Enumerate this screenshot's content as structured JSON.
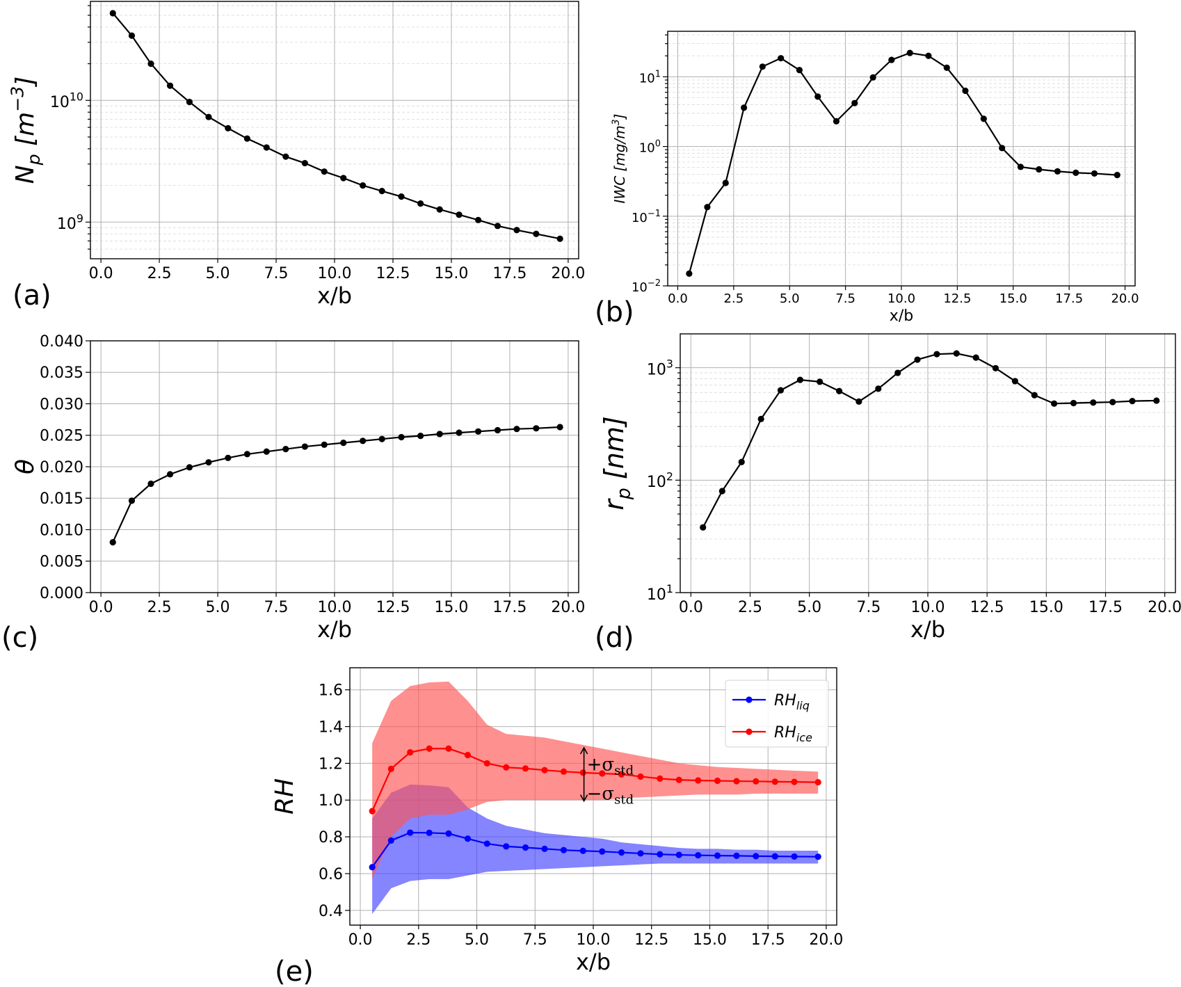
{
  "x_values": [
    0.51,
    1.32,
    2.14,
    2.96,
    3.79,
    4.61,
    5.44,
    6.26,
    7.09,
    7.91,
    8.73,
    9.56,
    10.38,
    11.21,
    12.03,
    12.86,
    13.68,
    14.5,
    15.33,
    16.15,
    16.98,
    17.8,
    18.63,
    19.65
  ],
  "chart_data": [
    {
      "panel": "(a)",
      "type": "line",
      "xlabel": "x/b",
      "ylabel": "N_p [m^-3]",
      "ylabel_base": "N",
      "ylabel_sub": "p",
      "ylabel_unit": " [m",
      "ylabel_sup": "−3",
      "ylabel_end": "]",
      "yscale": "log",
      "xlim": [
        -0.45,
        20.45
      ],
      "ylim": [
        500000000,
        65000000000
      ],
      "xticks": [
        "0.0",
        "2.5",
        "5.0",
        "7.5",
        "10.0",
        "12.5",
        "15.0",
        "17.5",
        "20.0"
      ],
      "ytick_labels": [
        {
          "value": 1000000000,
          "base": "10",
          "exp": "9"
        },
        {
          "value": 10000000000,
          "base": "10",
          "exp": "10"
        }
      ],
      "y": [
        52000000000,
        34000000000,
        20000000000,
        13200000000,
        9700000000,
        7300000000,
        5900000000,
        4850000000,
        4100000000,
        3450000000,
        3050000000,
        2600000000,
        2300000000,
        2000000000,
        1800000000,
        1620000000,
        1420000000,
        1270000000,
        1150000000,
        1040000000,
        930000000,
        860000000,
        800000000,
        730000000
      ],
      "color": "#000000",
      "grid": true
    },
    {
      "panel": "(b)",
      "type": "line",
      "xlabel": "x/b",
      "ylabel": "IWC [mg/m^3]",
      "ylabel_text": "IWC [mg/m",
      "ylabel_sup": "3",
      "ylabel_end": "]",
      "yscale": "log",
      "xlim": [
        -0.45,
        20.45
      ],
      "ylim": [
        0.01,
        45
      ],
      "xticks": [
        "0.0",
        "2.5",
        "5.0",
        "7.5",
        "10.0",
        "12.5",
        "15.0",
        "17.5",
        "20.0"
      ],
      "ytick_labels": [
        {
          "value": 0.01,
          "base": "10",
          "exp": "−2"
        },
        {
          "value": 0.1,
          "base": "10",
          "exp": "−1"
        },
        {
          "value": 1,
          "base": "10",
          "exp": "0"
        },
        {
          "value": 10,
          "base": "10",
          "exp": "1"
        }
      ],
      "y": [
        0.015,
        0.135,
        0.3,
        3.6,
        14,
        18.5,
        12.5,
        5.2,
        2.3,
        4.2,
        9.8,
        17.5,
        22,
        20,
        13.5,
        6.3,
        2.5,
        0.95,
        0.51,
        0.47,
        0.44,
        0.42,
        0.41,
        0.39
      ],
      "color": "#000000",
      "grid": true
    },
    {
      "panel": "(c)",
      "type": "line",
      "xlabel": "x/b",
      "ylabel": "θ",
      "yscale": "linear",
      "xlim": [
        -0.45,
        20.45
      ],
      "ylim": [
        0,
        0.04
      ],
      "xticks": [
        "0.0",
        "2.5",
        "5.0",
        "7.5",
        "10.0",
        "12.5",
        "15.0",
        "17.5",
        "20.0"
      ],
      "yticks": [
        "0.000",
        "0.005",
        "0.010",
        "0.015",
        "0.020",
        "0.025",
        "0.030",
        "0.035",
        "0.040"
      ],
      "y": [
        0.008,
        0.0146,
        0.0173,
        0.0188,
        0.0199,
        0.0207,
        0.0214,
        0.022,
        0.0224,
        0.0228,
        0.0232,
        0.0235,
        0.0238,
        0.0241,
        0.0244,
        0.0247,
        0.0249,
        0.0252,
        0.0254,
        0.0256,
        0.0258,
        0.026,
        0.0261,
        0.0263
      ],
      "color": "#000000",
      "grid": true
    },
    {
      "panel": "(d)",
      "type": "line",
      "xlabel": "x/b",
      "ylabel": "r_p [nm]",
      "ylabel_base": "r",
      "ylabel_sub": "p",
      "ylabel_unit": " [nm]",
      "yscale": "log",
      "xlim": [
        -0.45,
        20.45
      ],
      "ylim": [
        10,
        2000
      ],
      "xticks": [
        "0.0",
        "2.5",
        "5.0",
        "7.5",
        "10.0",
        "12.5",
        "15.0",
        "17.5",
        "20.0"
      ],
      "ytick_labels": [
        {
          "value": 10,
          "base": "10",
          "exp": "1"
        },
        {
          "value": 100,
          "base": "10",
          "exp": "2"
        },
        {
          "value": 1000,
          "base": "10",
          "exp": "3"
        }
      ],
      "y": [
        38,
        80,
        145,
        350,
        630,
        780,
        750,
        620,
        500,
        650,
        900,
        1180,
        1320,
        1340,
        1230,
        990,
        760,
        570,
        480,
        485,
        490,
        495,
        505,
        510
      ],
      "color": "#000000",
      "grid": true
    },
    {
      "panel": "(e)",
      "type": "line",
      "xlabel": "x/b",
      "ylabel": "RH",
      "yscale": "linear",
      "xlim": [
        -0.45,
        20.45
      ],
      "ylim": [
        0.32,
        1.72
      ],
      "xticks": [
        "0.0",
        "2.5",
        "5.0",
        "7.5",
        "10.0",
        "12.5",
        "15.0",
        "17.5",
        "20.0"
      ],
      "yticks": [
        "0.4",
        "0.6",
        "0.8",
        "1.0",
        "1.2",
        "1.4",
        "1.6"
      ],
      "legend_position": "top-right",
      "series": [
        {
          "name": "RH_liq",
          "label_base": "RH",
          "label_sub": "liq",
          "color": "#0000ff",
          "band_color": "#4444ff",
          "y": [
            0.635,
            0.78,
            0.823,
            0.822,
            0.818,
            0.79,
            0.763,
            0.748,
            0.742,
            0.735,
            0.728,
            0.724,
            0.72,
            0.715,
            0.71,
            0.705,
            0.702,
            0.7,
            0.698,
            0.697,
            0.695,
            0.694,
            0.693,
            0.692
          ],
          "upper": [
            0.9,
            1.04,
            1.085,
            1.08,
            1.07,
            0.96,
            0.9,
            0.86,
            0.84,
            0.82,
            0.81,
            0.8,
            0.79,
            0.77,
            0.76,
            0.75,
            0.74,
            0.735,
            0.735,
            0.73,
            0.73,
            0.725,
            0.725,
            0.725
          ],
          "lower": [
            0.38,
            0.52,
            0.56,
            0.57,
            0.57,
            0.59,
            0.61,
            0.615,
            0.62,
            0.625,
            0.63,
            0.635,
            0.64,
            0.645,
            0.65,
            0.655,
            0.655,
            0.655,
            0.655,
            0.655,
            0.655,
            0.655,
            0.655,
            0.655
          ]
        },
        {
          "name": "RH_ice",
          "label_base": "RH",
          "label_sub": "ice",
          "color": "#ff0000",
          "band_color": "#ff5555",
          "y": [
            0.94,
            1.17,
            1.26,
            1.28,
            1.28,
            1.245,
            1.2,
            1.178,
            1.172,
            1.163,
            1.155,
            1.149,
            1.145,
            1.14,
            1.128,
            1.117,
            1.11,
            1.107,
            1.105,
            1.103,
            1.102,
            1.1,
            1.099,
            1.097
          ],
          "upper": [
            1.31,
            1.54,
            1.62,
            1.64,
            1.645,
            1.54,
            1.41,
            1.36,
            1.35,
            1.34,
            1.32,
            1.3,
            1.28,
            1.26,
            1.24,
            1.22,
            1.2,
            1.19,
            1.18,
            1.175,
            1.17,
            1.165,
            1.16,
            1.155
          ],
          "lower": [
            0.57,
            0.8,
            0.9,
            0.92,
            0.92,
            0.95,
            0.99,
            1.0,
            1.0,
            1.0,
            1.0,
            1.0,
            1.0,
            1.01,
            1.015,
            1.02,
            1.025,
            1.03,
            1.03,
            1.03,
            1.035,
            1.035,
            1.035,
            1.035
          ]
        }
      ],
      "annotation": {
        "plus": "+σ",
        "minus": "−σ",
        "sub": "std",
        "x": 9.6,
        "y_top": 1.285,
        "y_bottom": 0.995
      }
    }
  ]
}
